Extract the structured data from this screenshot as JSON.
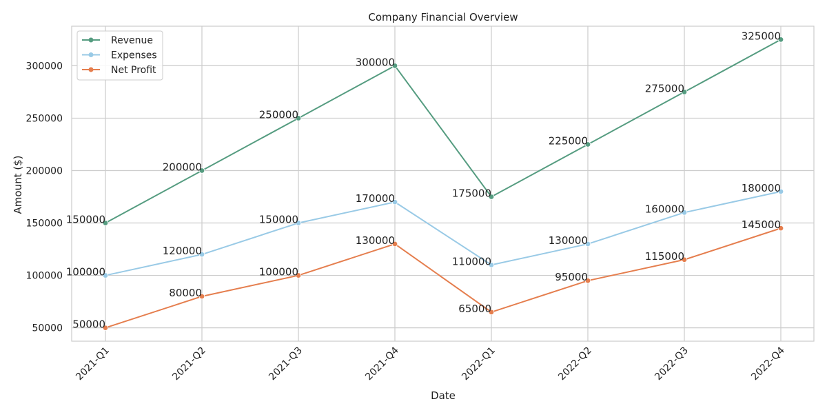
{
  "chart_data": {
    "type": "line",
    "title": "Company Financial Overview",
    "xlabel": "Date",
    "ylabel": "Amount ($)",
    "categories": [
      "2021-Q1",
      "2021-Q2",
      "2021-Q3",
      "2021-Q4",
      "2022-Q1",
      "2022-Q2",
      "2022-Q3",
      "2022-Q4"
    ],
    "yticks": [
      50000,
      100000,
      150000,
      200000,
      250000,
      300000
    ],
    "ylim": [
      37250,
      337750
    ],
    "grid": true,
    "legend_position": "top-left",
    "series": [
      {
        "name": "Revenue",
        "color": "#559c80",
        "values": [
          150000,
          200000,
          250000,
          300000,
          175000,
          225000,
          275000,
          325000
        ]
      },
      {
        "name": "Expenses",
        "color": "#99cae6",
        "values": [
          100000,
          120000,
          150000,
          170000,
          110000,
          130000,
          160000,
          180000
        ]
      },
      {
        "name": "Net Profit",
        "color": "#e57e4e",
        "values": [
          50000,
          80000,
          100000,
          130000,
          65000,
          95000,
          115000,
          145000
        ]
      }
    ]
  }
}
